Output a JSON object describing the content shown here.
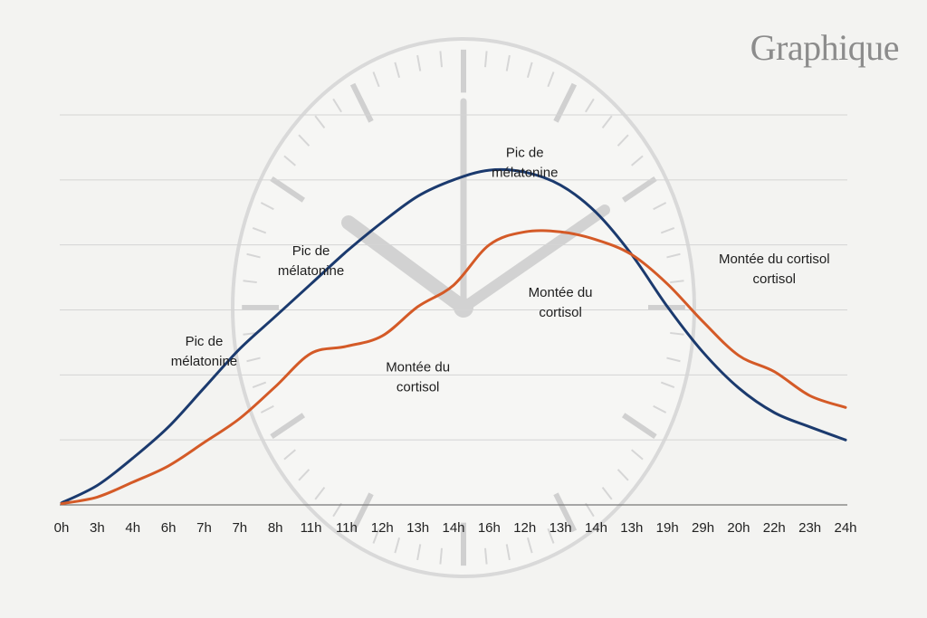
{
  "brand": {
    "text": "Graphique"
  },
  "chart_data": {
    "type": "line",
    "title": "",
    "xlabel": "",
    "ylabel": "",
    "categories": [
      "0h",
      "3h",
      "4h",
      "6h",
      "7h",
      "7h",
      "8h",
      "11h",
      "11h",
      "12h",
      "13h",
      "14h",
      "16h",
      "12h",
      "13h",
      "14h",
      "13h",
      "19h",
      "29h",
      "20h",
      "22h",
      "23h",
      "24h"
    ],
    "ylim": [
      0,
      6
    ],
    "grid": true,
    "series": [
      {
        "color": "#1b3a6e",
        "values": [
          0.03,
          0.3,
          0.72,
          1.2,
          1.8,
          2.4,
          2.9,
          3.4,
          3.9,
          4.35,
          4.75,
          5.0,
          5.15,
          5.12,
          4.92,
          4.5,
          3.85,
          3.05,
          2.35,
          1.8,
          1.42,
          1.2,
          1.0
        ]
      },
      {
        "color": "#d45a27",
        "values": [
          0.02,
          0.12,
          0.35,
          0.6,
          0.96,
          1.33,
          1.82,
          2.33,
          2.44,
          2.6,
          3.05,
          3.38,
          4.0,
          4.2,
          4.2,
          4.08,
          3.85,
          3.4,
          2.82,
          2.3,
          2.05,
          1.68,
          1.5
        ]
      }
    ],
    "annotations": [
      {
        "lines": [
          "Pic de",
          "mélatonine"
        ],
        "x_index": 13,
        "y": 5.35
      },
      {
        "lines": [
          "Pic de",
          "mélatonine"
        ],
        "x_index": 7,
        "y": 3.84
      },
      {
        "lines": [
          "Pic de",
          "mélatonine"
        ],
        "x_index": 4,
        "y": 2.45
      },
      {
        "lines": [
          "Montée du",
          "cortisol"
        ],
        "x_index": 10,
        "y": 2.05
      },
      {
        "lines": [
          "Montée du",
          "cortisol"
        ],
        "x_index": 14,
        "y": 3.2
      },
      {
        "lines": [
          "Montée du cortisol",
          "cortisol"
        ],
        "x_index": 20,
        "y": 3.72
      }
    ]
  }
}
